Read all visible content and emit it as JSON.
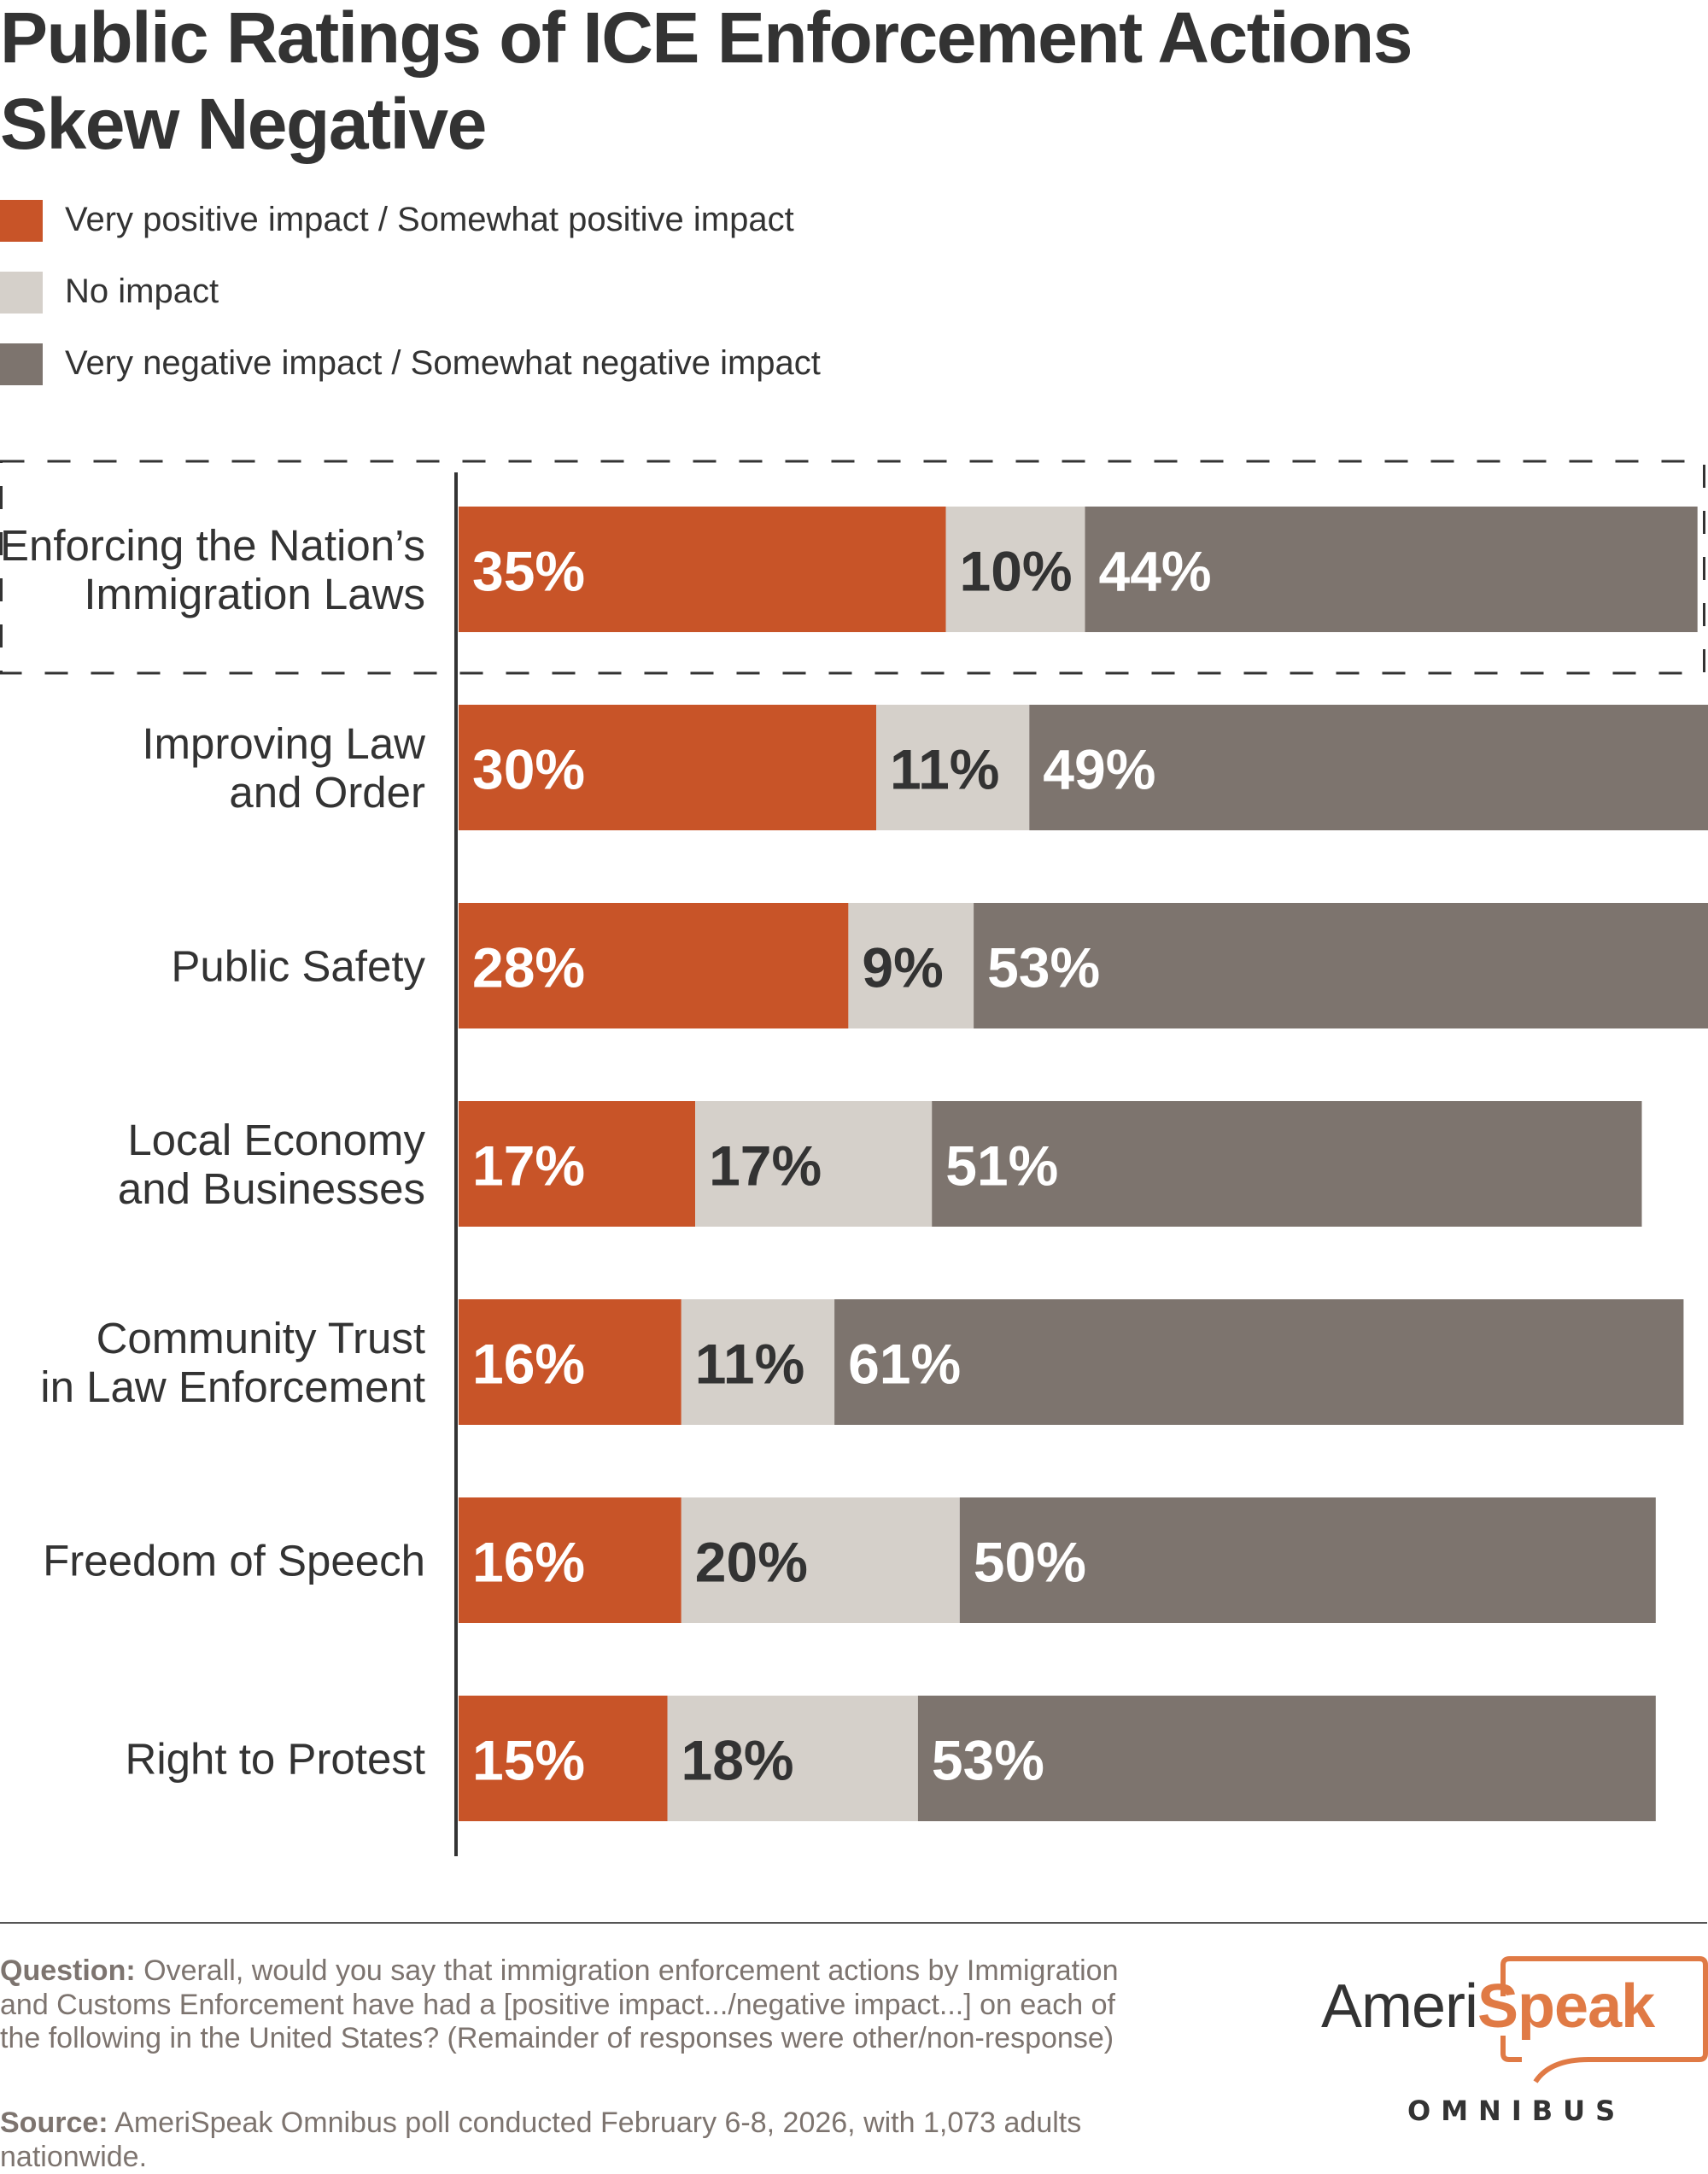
{
  "title": "Public Ratings of ICE Enforcement Actions Skew Negative",
  "colors": {
    "positive": "#c85428",
    "neutral": "#d5d0ca",
    "negative": "#7d746e",
    "text_dark": "#333333",
    "text_light": "#ffffff",
    "footnote": "#7d746f",
    "logo_accent": "#e07a45"
  },
  "legend": [
    {
      "key": "positive",
      "label": "Very positive impact / Somewhat positive impact"
    },
    {
      "key": "neutral",
      "label": "No impact"
    },
    {
      "key": "negative",
      "label": "Very negative impact / Somewhat negative impact"
    }
  ],
  "chart_data": {
    "type": "bar",
    "orientation": "horizontal",
    "stacked": true,
    "title": "Public Ratings of ICE Enforcement Actions Skew Negative",
    "xlabel": "",
    "ylabel": "",
    "unit": "%",
    "xlim": [
      0,
      100
    ],
    "grid": false,
    "legend_position": "top-left",
    "highlighted_category": "Enforcing the Nation’s Immigration Laws",
    "categories": [
      [
        "Enforcing the Nation’s",
        "Immigration Laws"
      ],
      [
        "Improving Law",
        "and Order"
      ],
      [
        "Public Safety"
      ],
      [
        "Local Economy",
        "and Businesses"
      ],
      [
        "Community Trust",
        "in Law Enforcement"
      ],
      [
        "Freedom of Speech"
      ],
      [
        "Right to Protest"
      ]
    ],
    "series": [
      {
        "name": "Very positive impact / Somewhat positive impact",
        "key": "positive",
        "values": [
          35,
          30,
          28,
          17,
          16,
          16,
          15
        ]
      },
      {
        "name": "No impact",
        "key": "neutral",
        "values": [
          10,
          11,
          9,
          17,
          11,
          20,
          18
        ]
      },
      {
        "name": "Very negative impact / Somewhat negative impact",
        "key": "negative",
        "values": [
          44,
          49,
          53,
          51,
          61,
          50,
          53
        ]
      }
    ]
  },
  "footnote": {
    "question_label": "Question:",
    "question_text": " Overall, would you say that immigration enforcement actions by Immigration and Customs Enforcement have had a [positive impact.../negative impact...] on each of the following in the United States? (Remainder of responses were other/non-response)",
    "source_label": "Source:",
    "source_text": " AmeriSpeak Omnibus poll conducted February 6-8, 2026, with 1,073 adults nationwide."
  },
  "logo": {
    "word_part1": "Ameri",
    "word_part2": "Speak",
    "subtitle": "OMNIBUS"
  }
}
